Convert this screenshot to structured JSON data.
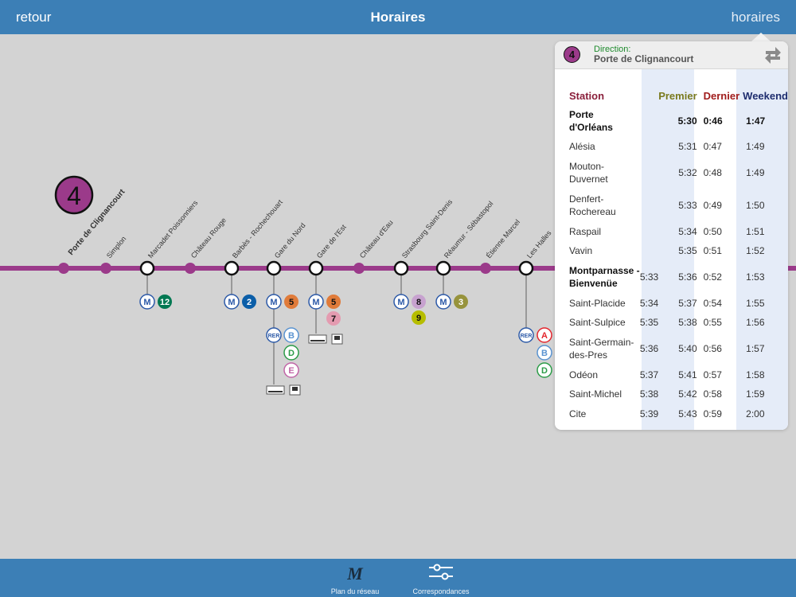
{
  "navbar": {
    "back": "retour",
    "title": "Horaires",
    "schedules": "horaires"
  },
  "line": {
    "number": "4",
    "color": "#9b3a8a"
  },
  "map_stations": [
    "Porte de Clignancourt",
    "Simplon",
    "Marcadet Poissonniers",
    "Château Rouge",
    "Barbès - Rochechouart",
    "Gare du Nord",
    "Gare de l'Est",
    "Château d'Eau",
    "Strasbourg Saint-Denis",
    "Réaumur - Sébastopol",
    "Étienne Marcel",
    "Les Halles"
  ],
  "connections": {
    "marcadet": [
      "M",
      "12"
    ],
    "barbes": [
      "M",
      "2"
    ],
    "gare_du_nord": {
      "metro": [
        "M",
        "5"
      ],
      "rer": [
        "RER",
        "B",
        "D",
        "E"
      ]
    },
    "gare_de_lest": {
      "metro": [
        "M",
        "5",
        "7"
      ]
    },
    "strasbourg": [
      "M",
      "8",
      "9"
    ],
    "reaumur": [
      "M",
      "3"
    ],
    "les_halles": {
      "rer": [
        "RER",
        "A",
        "B",
        "D"
      ]
    }
  },
  "colors": {
    "line4": "#9b3a8a",
    "l12": "#007852",
    "l2": "#0b5ea8",
    "l5": "#e07b3a",
    "l7": "#e49bb0",
    "l8": "#c7a2cf",
    "l9": "#b6bd00",
    "l3": "#97933c",
    "rerA": "#e3262d",
    "rerB": "#5a93d0",
    "rerD": "#2c9c48",
    "rerE": "#c165a7",
    "metro": "#2d5aa8"
  },
  "popover": {
    "direction_label": "Direction:",
    "direction_value": "Porte de Clignancourt",
    "headers": {
      "station": "Station",
      "premier": "Premier",
      "dernier": "Dernier",
      "weekend": "Weekend"
    },
    "header_colors": {
      "station": "#8a1f3b",
      "premier": "#7a7a1e",
      "dernier": "#a01c1c",
      "weekend": "#1e2d6e"
    },
    "rows": [
      {
        "station": "Porte d'Orléans",
        "wk": "",
        "premier": "5:30",
        "dernier": "0:46",
        "weekend": "1:47",
        "bold": true,
        "tall": true
      },
      {
        "station": "Alésia",
        "wk": "",
        "premier": "5:31",
        "dernier": "0:47",
        "weekend": "1:49"
      },
      {
        "station": "Mouton-Duvernet",
        "wk": "",
        "premier": "5:32",
        "dernier": "0:48",
        "weekend": "1:49",
        "tall": true
      },
      {
        "station": "Denfert-Rochereau",
        "wk": "",
        "premier": "5:33",
        "dernier": "0:49",
        "weekend": "1:50",
        "tall": true
      },
      {
        "station": "Raspail",
        "wk": "",
        "premier": "5:34",
        "dernier": "0:50",
        "weekend": "1:51"
      },
      {
        "station": "Vavin",
        "wk": "",
        "premier": "5:35",
        "dernier": "0:51",
        "weekend": "1:52"
      },
      {
        "station": "Montparnasse - Bienvenüe",
        "wk": "5:33",
        "premier": "5:36",
        "dernier": "0:52",
        "weekend": "1:53",
        "boldname": true,
        "tall": true
      },
      {
        "station": "Saint-Placide",
        "wk": "5:34",
        "premier": "5:37",
        "dernier": "0:54",
        "weekend": "1:55"
      },
      {
        "station": "Saint-Sulpice",
        "wk": "5:35",
        "premier": "5:38",
        "dernier": "0:55",
        "weekend": "1:56"
      },
      {
        "station": "Saint-Germain-des-Pres",
        "wk": "5:36",
        "premier": "5:40",
        "dernier": "0:56",
        "weekend": "1:57",
        "tall": true
      },
      {
        "station": "Odéon",
        "wk": "5:37",
        "premier": "5:41",
        "dernier": "0:57",
        "weekend": "1:58"
      },
      {
        "station": "Saint-Michel",
        "wk": "5:38",
        "premier": "5:42",
        "dernier": "0:58",
        "weekend": "1:59"
      },
      {
        "station": "Cite",
        "wk": "5:39",
        "premier": "5:43",
        "dernier": "0:59",
        "weekend": "2:00"
      }
    ]
  },
  "tabbar": {
    "map": "Plan du réseau",
    "correspondences": "Correspondances",
    "map_icon": "M"
  }
}
